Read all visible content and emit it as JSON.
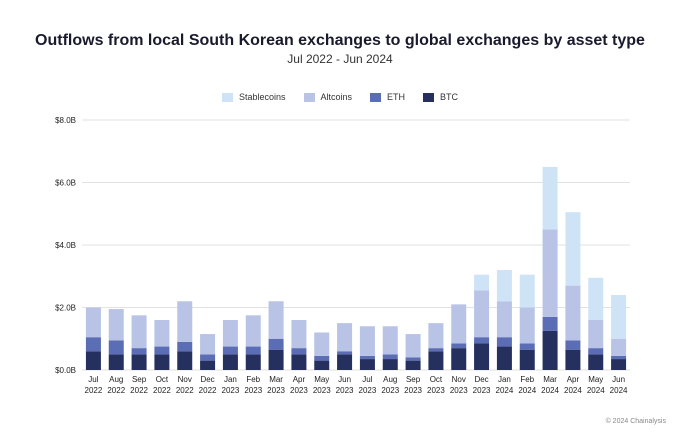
{
  "chart_data": {
    "type": "bar",
    "stacked": true,
    "title": "Outflows from local South Korean exchanges to global exchanges by asset type",
    "subtitle": "Jul 2022 - Jun 2024",
    "ylim": [
      0,
      8
    ],
    "y_ticks": [
      0,
      2,
      4,
      6,
      8
    ],
    "y_tick_labels": [
      "$0.0B",
      "$2.0B",
      "$4.0B",
      "$6.0B",
      "$8.0B"
    ],
    "categories": [
      {
        "month": "Jul",
        "year": "2022"
      },
      {
        "month": "Aug",
        "year": "2022"
      },
      {
        "month": "Sep",
        "year": "2022"
      },
      {
        "month": "Oct",
        "year": "2022"
      },
      {
        "month": "Nov",
        "year": "2022"
      },
      {
        "month": "Dec",
        "year": "2022"
      },
      {
        "month": "Jan",
        "year": "2023"
      },
      {
        "month": "Feb",
        "year": "2023"
      },
      {
        "month": "Mar",
        "year": "2023"
      },
      {
        "month": "Apr",
        "year": "2023"
      },
      {
        "month": "May",
        "year": "2023"
      },
      {
        "month": "Jun",
        "year": "2023"
      },
      {
        "month": "Jul",
        "year": "2023"
      },
      {
        "month": "Aug",
        "year": "2023"
      },
      {
        "month": "Sep",
        "year": "2023"
      },
      {
        "month": "Oct",
        "year": "2023"
      },
      {
        "month": "Nov",
        "year": "2023"
      },
      {
        "month": "Dec",
        "year": "2023"
      },
      {
        "month": "Jan",
        "year": "2024"
      },
      {
        "month": "Feb",
        "year": "2024"
      },
      {
        "month": "Mar",
        "year": "2024"
      },
      {
        "month": "Apr",
        "year": "2024"
      },
      {
        "month": "May",
        "year": "2024"
      },
      {
        "month": "Jun",
        "year": "2024"
      }
    ],
    "series": [
      {
        "name": "BTC",
        "color": "#25305e",
        "values": [
          0.6,
          0.5,
          0.5,
          0.5,
          0.6,
          0.3,
          0.5,
          0.5,
          0.65,
          0.5,
          0.3,
          0.5,
          0.35,
          0.35,
          0.3,
          0.6,
          0.7,
          0.85,
          0.75,
          0.65,
          1.25,
          0.65,
          0.5,
          0.35
        ]
      },
      {
        "name": "ETH",
        "color": "#5b6db4",
        "values": [
          0.45,
          0.45,
          0.2,
          0.25,
          0.3,
          0.2,
          0.25,
          0.25,
          0.35,
          0.2,
          0.15,
          0.1,
          0.1,
          0.15,
          0.1,
          0.1,
          0.15,
          0.2,
          0.3,
          0.2,
          0.45,
          0.3,
          0.2,
          0.1
        ]
      },
      {
        "name": "Altcoins",
        "color": "#b9c3e6",
        "values": [
          0.95,
          1.0,
          1.05,
          0.85,
          1.3,
          0.65,
          0.85,
          1.0,
          1.2,
          0.9,
          0.75,
          0.9,
          0.95,
          0.9,
          0.75,
          0.8,
          1.25,
          1.5,
          1.15,
          1.15,
          2.8,
          1.75,
          0.9,
          0.55
        ]
      },
      {
        "name": "Stablecoins",
        "color": "#cfe3f6",
        "values": [
          0,
          0,
          0,
          0,
          0,
          0,
          0,
          0,
          0,
          0,
          0,
          0,
          0,
          0,
          0,
          0,
          0,
          0.5,
          1.0,
          1.05,
          2.0,
          2.35,
          1.35,
          1.4
        ]
      }
    ],
    "legend_order": [
      "Stablecoins",
      "Altcoins",
      "ETH",
      "BTC"
    ],
    "legend_position": "top-center",
    "grid": true
  },
  "footer": "© 2024 Chainalysis"
}
